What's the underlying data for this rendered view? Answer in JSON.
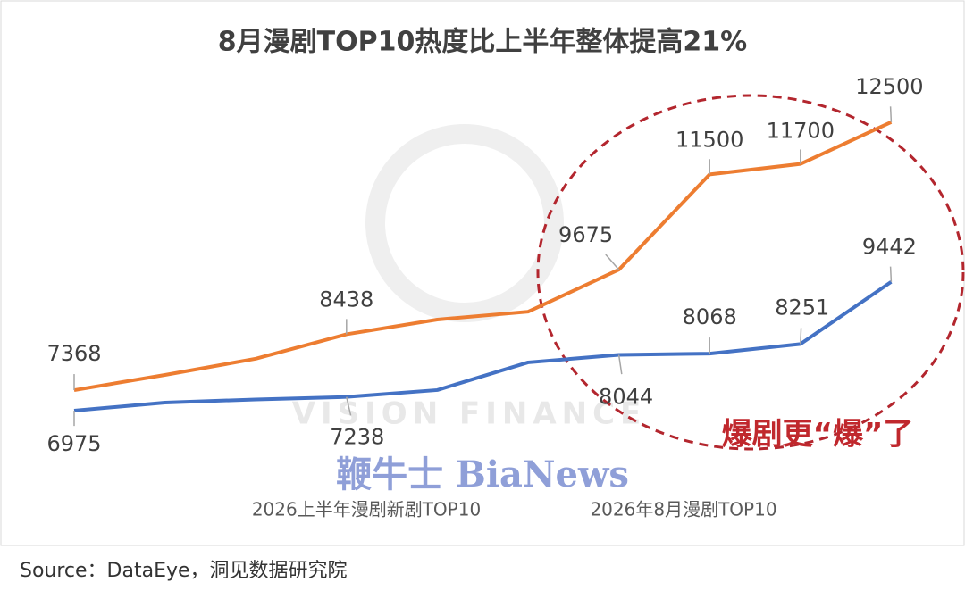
{
  "chart_data": {
    "type": "line",
    "title": "8月漫剧TOP10热度比上半年整体提高21%",
    "categories": [
      null,
      null,
      null,
      null,
      null,
      null,
      null,
      null,
      null,
      null
    ],
    "ylim": [
      5950,
      13130
    ],
    "series": [
      {
        "name": "2026上半年漫剧新剧TOP10",
        "color": "#4472c4",
        "values": [
          6975,
          7130,
          7190,
          7238,
          7370,
          7900,
          8044,
          8068,
          8251,
          9442
        ],
        "value_labels": [
          "6975",
          null,
          null,
          "7238",
          null,
          null,
          "8044",
          "8068",
          "8251",
          "9442"
        ]
      },
      {
        "name": "2026年8月漫剧TOP10",
        "color": "#ed7d31",
        "values": [
          7368,
          7660,
          7970,
          8438,
          8720,
          8870,
          9675,
          11500,
          11700,
          12500
        ],
        "value_labels": [
          "7368",
          null,
          null,
          "8438",
          null,
          null,
          "9675",
          "11500",
          "11700",
          "12500"
        ]
      }
    ],
    "annotation": "爆剧更“爆”了",
    "watermark": "鞭牛士 BiaNews",
    "watermark2": "VISION FINANCE",
    "source": "Source：DataEye，洞见数据研究院"
  }
}
